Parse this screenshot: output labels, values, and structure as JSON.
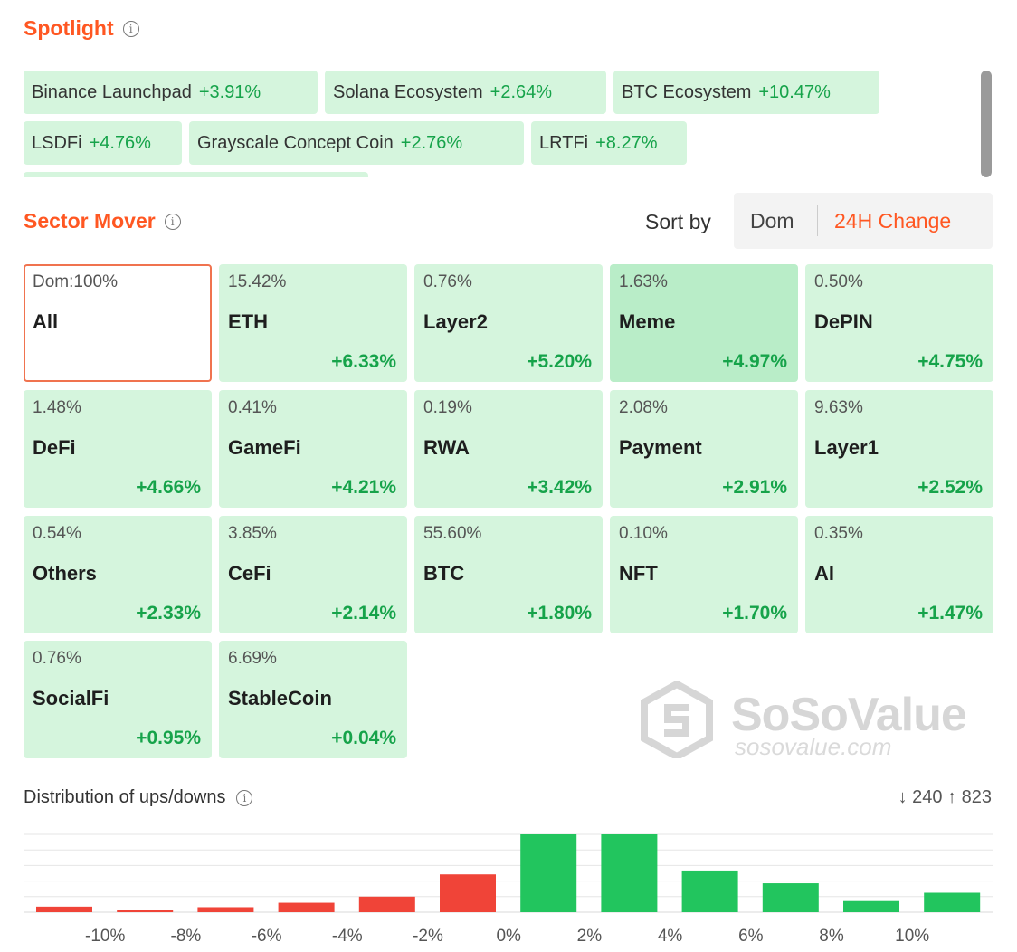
{
  "spotlight": {
    "title": "Spotlight",
    "chips": [
      {
        "name": "Binance Launchpad",
        "pct": "+3.91%"
      },
      {
        "name": "Solana Ecosystem",
        "pct": "+2.64%"
      },
      {
        "name": "BTC Ecosystem",
        "pct": "+10.47%"
      },
      {
        "name": "LSDFi",
        "pct": "+4.76%"
      },
      {
        "name": "Grayscale Concept Coin",
        "pct": "+2.76%"
      },
      {
        "name": "LRTFi",
        "pct": "+8.27%"
      }
    ]
  },
  "sector": {
    "title": "Sector Mover",
    "sort_label": "Sort by",
    "sort_options": [
      "Dom",
      "24H Change"
    ],
    "active_sort": "24H Change",
    "tiles": [
      {
        "dom": "Dom:100%",
        "name": "All",
        "change": ""
      },
      {
        "dom": "15.42%",
        "name": "ETH",
        "change": "+6.33%"
      },
      {
        "dom": "0.76%",
        "name": "Layer2",
        "change": "+5.20%"
      },
      {
        "dom": "1.63%",
        "name": "Meme",
        "change": "+4.97%"
      },
      {
        "dom": "0.50%",
        "name": "DePIN",
        "change": "+4.75%"
      },
      {
        "dom": "1.48%",
        "name": "DeFi",
        "change": "+4.66%"
      },
      {
        "dom": "0.41%",
        "name": "GameFi",
        "change": "+4.21%"
      },
      {
        "dom": "0.19%",
        "name": "RWA",
        "change": "+3.42%"
      },
      {
        "dom": "2.08%",
        "name": "Payment",
        "change": "+2.91%"
      },
      {
        "dom": "9.63%",
        "name": "Layer1",
        "change": "+2.52%"
      },
      {
        "dom": "0.54%",
        "name": "Others",
        "change": "+2.33%"
      },
      {
        "dom": "3.85%",
        "name": "CeFi",
        "change": "+2.14%"
      },
      {
        "dom": "55.60%",
        "name": "BTC",
        "change": "+1.80%"
      },
      {
        "dom": "0.10%",
        "name": "NFT",
        "change": "+1.70%"
      },
      {
        "dom": "0.35%",
        "name": "AI",
        "change": "+1.47%"
      },
      {
        "dom": "0.76%",
        "name": "SocialFi",
        "change": "+0.95%"
      },
      {
        "dom": "6.69%",
        "name": "StableCoin",
        "change": "+0.04%"
      }
    ]
  },
  "watermark": {
    "brand": "SoSoValue",
    "url": "sosovalue.com"
  },
  "distribution": {
    "title": "Distribution of ups/downs",
    "down_count": "↓ 240",
    "up_count": "↑ 823"
  },
  "colors": {
    "accent": "#ff5722",
    "up": "#22c55e",
    "down": "#f04438",
    "tile_bg": "#d5f5dd"
  },
  "chart_data": {
    "type": "bar",
    "tick_labels": [
      "-10%",
      "-8%",
      "-6%",
      "-4%",
      "-2%",
      "0%",
      "2%",
      "4%",
      "6%",
      "8%",
      "10%"
    ],
    "bars": [
      {
        "bin": "<-10%",
        "count": 10,
        "direction": "down"
      },
      {
        "bin": "-10% to -8%",
        "count": 3,
        "direction": "down"
      },
      {
        "bin": "-8% to -6%",
        "count": 9,
        "direction": "down"
      },
      {
        "bin": "-6% to -4%",
        "count": 17,
        "direction": "down"
      },
      {
        "bin": "-4% to -2%",
        "count": 28,
        "direction": "down"
      },
      {
        "bin": "-2% to 0%",
        "count": 68,
        "direction": "down"
      },
      {
        "bin": "0% to 2%",
        "count": 140,
        "direction": "up"
      },
      {
        "bin": "2% to 4%",
        "count": 140,
        "direction": "up"
      },
      {
        "bin": "4% to 6%",
        "count": 75,
        "direction": "up"
      },
      {
        "bin": "6% to 8%",
        "count": 52,
        "direction": "up"
      },
      {
        "bin": "8% to 10%",
        "count": 20,
        "direction": "up"
      },
      {
        "bin": ">10%",
        "count": 35,
        "direction": "up"
      }
    ],
    "ymax": 140,
    "grid": true
  }
}
